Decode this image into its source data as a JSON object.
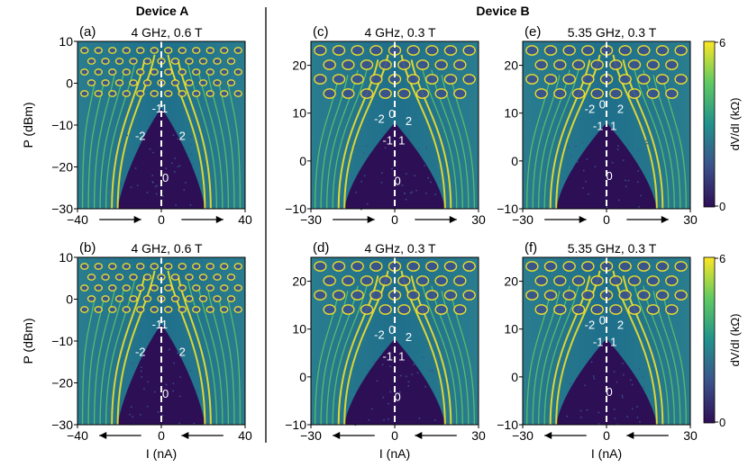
{
  "chart_data": {
    "type": "heatmap",
    "groups": [
      {
        "name": "Device A"
      },
      {
        "name": "Device B"
      }
    ],
    "panels": [
      {
        "label": "(a)",
        "device": "Device A",
        "title": "4 GHz, 0.6 T",
        "xlim": [
          -40,
          40
        ],
        "ylim": [
          -30,
          10
        ],
        "xticks": [
          "−40",
          "0",
          "40"
        ],
        "yticks": [
          "10",
          "0",
          "−10",
          "−20",
          "−30"
        ],
        "ylabel": "P (dBm)",
        "xlabel": "",
        "sweep": "right",
        "step_labels": [
          {
            "text": "-2",
            "I": -10,
            "P": -13.5
          },
          {
            "text": "-1",
            "I": -2,
            "P": -7
          },
          {
            "text": "2",
            "I": 10,
            "P": -13.5
          },
          {
            "text": "1",
            "I": 1.5,
            "P": -7
          },
          {
            "text": "0",
            "I": 2,
            "P": -23.5
          }
        ]
      },
      {
        "label": "(c)",
        "device": "Device B",
        "title": "4 GHz, 0.3 T",
        "xlim": [
          -30,
          30
        ],
        "ylim": [
          -10,
          25
        ],
        "xticks": [
          "−30",
          "0",
          "30"
        ],
        "yticks": [
          "20",
          "10",
          "0",
          "−10"
        ],
        "ylabel": "",
        "xlabel": "",
        "sweep": "right",
        "step_labels": [
          {
            "text": "-2",
            "I": -5.5,
            "P": 8
          },
          {
            "text": "0",
            "I": -1,
            "P": 9
          },
          {
            "text": "2",
            "I": 5,
            "P": 7.5
          },
          {
            "text": "-1",
            "I": -2.5,
            "P": 3.5
          },
          {
            "text": "1",
            "I": 2.5,
            "P": 3.5
          },
          {
            "text": "0",
            "I": 1,
            "P": -5
          }
        ]
      },
      {
        "label": "(e)",
        "device": "Device B",
        "title": "5.35 GHz, 0.3 T",
        "xlim": [
          -30,
          30
        ],
        "ylim": [
          -10,
          25
        ],
        "xticks": [
          "−30",
          "0",
          "30"
        ],
        "yticks": [
          "20",
          "10",
          "0",
          "−10"
        ],
        "ylabel": "",
        "xlabel": "",
        "sweep": "right",
        "step_labels": [
          {
            "text": "-2",
            "I": -6,
            "P": 10
          },
          {
            "text": "0",
            "I": -1.5,
            "P": 11
          },
          {
            "text": "2",
            "I": 5,
            "P": 10
          },
          {
            "text": "-1",
            "I": -3,
            "P": 6.5
          },
          {
            "text": "1",
            "I": 2.5,
            "P": 6.5
          },
          {
            "text": "0",
            "I": 1,
            "P": -4
          }
        ]
      },
      {
        "label": "(b)",
        "device": "Device A",
        "title": "4 GHz, 0.6 T",
        "xlim": [
          -40,
          40
        ],
        "ylim": [
          -30,
          10
        ],
        "xticks": [
          "−40",
          "0",
          "40"
        ],
        "yticks": [
          "10",
          "0",
          "−10",
          "−20",
          "−30"
        ],
        "ylabel": "P (dBm)",
        "xlabel": "I (nA)",
        "sweep": "left",
        "step_labels": [
          {
            "text": "-2",
            "I": -10,
            "P": -13.5
          },
          {
            "text": "-1",
            "I": -2,
            "P": -7
          },
          {
            "text": "2",
            "I": 10,
            "P": -13.5
          },
          {
            "text": "1",
            "I": 1.5,
            "P": -7
          },
          {
            "text": "0",
            "I": 2,
            "P": -23.5
          }
        ]
      },
      {
        "label": "(d)",
        "device": "Device B",
        "title": "4 GHz, 0.3 T",
        "xlim": [
          -30,
          30
        ],
        "ylim": [
          -10,
          25
        ],
        "xticks": [
          "−30",
          "0",
          "30"
        ],
        "yticks": [
          "20",
          "10",
          "0",
          "−10"
        ],
        "ylabel": "",
        "xlabel": "I (nA)",
        "sweep": "left",
        "step_labels": [
          {
            "text": "-2",
            "I": -5.5,
            "P": 8
          },
          {
            "text": "0",
            "I": -1,
            "P": 9
          },
          {
            "text": "2",
            "I": 5,
            "P": 7.5
          },
          {
            "text": "-1",
            "I": -2.5,
            "P": 3.5
          },
          {
            "text": "1",
            "I": 2.5,
            "P": 3.5
          },
          {
            "text": "0",
            "I": 1,
            "P": -5
          }
        ]
      },
      {
        "label": "(f)",
        "device": "Device B",
        "title": "5.35 GHz, 0.3 T",
        "xlim": [
          -30,
          30
        ],
        "ylim": [
          -10,
          25
        ],
        "xticks": [
          "−30",
          "0",
          "30"
        ],
        "yticks": [
          "20",
          "10",
          "0",
          "−10"
        ],
        "ylabel": "",
        "xlabel": "I (nA)",
        "sweep": "left",
        "step_labels": [
          {
            "text": "-2",
            "I": -6,
            "P": 10
          },
          {
            "text": "0",
            "I": -1.5,
            "P": 11
          },
          {
            "text": "2",
            "I": 5,
            "P": 10
          },
          {
            "text": "-1",
            "I": -3,
            "P": 6.5
          },
          {
            "text": "1",
            "I": 2.5,
            "P": 6.5
          },
          {
            "text": "0",
            "I": 1,
            "P": -4
          }
        ]
      }
    ],
    "colorbar": {
      "label": "dV/dI (kΩ)",
      "range": [
        0,
        6
      ],
      "ticks": [
        "6",
        "0"
      ],
      "colors": [
        "#2d0f55",
        "#3b528b",
        "#21918c",
        "#5ec962",
        "#fde725"
      ]
    }
  }
}
